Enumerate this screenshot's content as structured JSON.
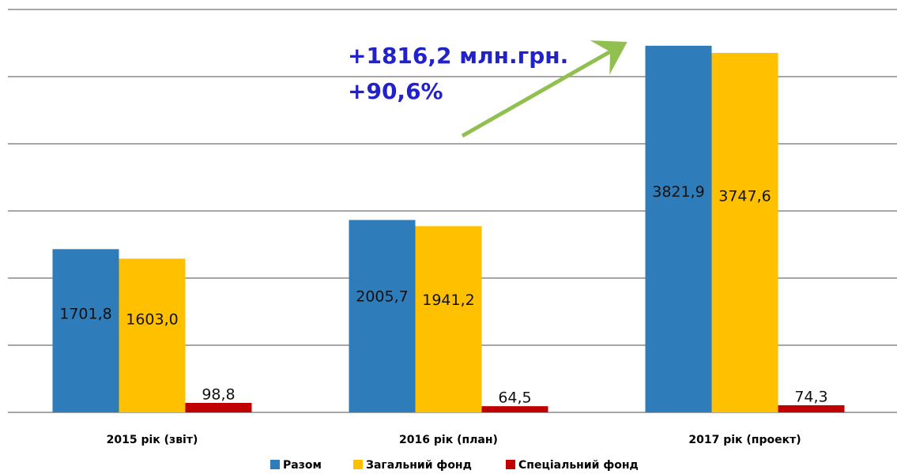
{
  "chart_data": {
    "type": "bar",
    "categories": [
      "2015 рік (звіт)",
      "2016 рік (план)",
      "2017 рік (проект)"
    ],
    "series": [
      {
        "name": "Разом",
        "color": "#2e7dba",
        "values": [
          1701.8,
          2005.7,
          3821.9
        ],
        "value_labels": [
          "1701,8",
          "2005,7",
          "3821,9"
        ]
      },
      {
        "name": "Загальний фонд",
        "color": "#ffc000",
        "values": [
          1603.0,
          1941.2,
          3747.6
        ],
        "value_labels": [
          "1603,0",
          "1941,2",
          "3747,6"
        ]
      },
      {
        "name": "Спеціальний фонд",
        "color": "#c00000",
        "values": [
          98.8,
          64.5,
          74.3
        ],
        "value_labels": [
          "98,8",
          "64,5",
          "74,3"
        ]
      }
    ],
    "annotations": [
      "+1816,2 млн.грн.",
      "+90,6%"
    ],
    "ylim": [
      0,
      4200
    ],
    "yticks": [
      0,
      700,
      1400,
      2100,
      2800,
      3500,
      4200
    ],
    "grid": true,
    "legend": "bottom"
  }
}
